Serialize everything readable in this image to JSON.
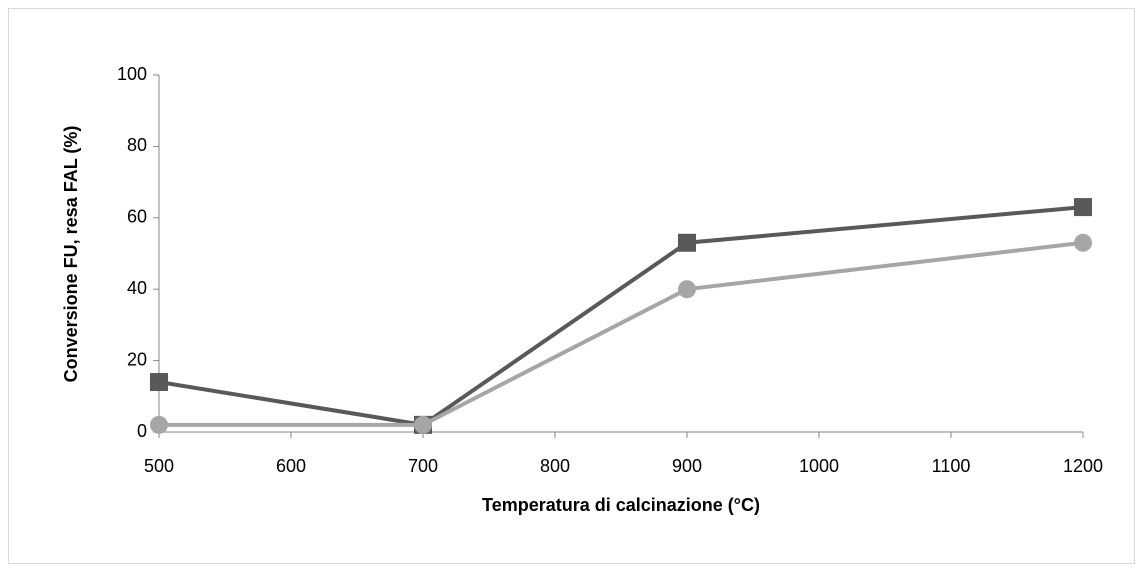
{
  "chart_data": {
    "type": "line",
    "xlabel": "Temperatura di calcinazione  (°C)",
    "ylabel": "Conversione FU, resa FAL (%)",
    "x": [
      500,
      700,
      900,
      1200
    ],
    "series": [
      {
        "color": "#595959",
        "marker": "square",
        "values": [
          14,
          2,
          53,
          63
        ]
      },
      {
        "color": "#a6a6a6",
        "marker": "circle",
        "values": [
          2,
          2,
          40,
          53
        ]
      }
    ],
    "xlim": [
      500,
      1200
    ],
    "xticks": [
      500,
      600,
      700,
      800,
      900,
      1000,
      1100,
      1200
    ],
    "ylim": [
      0,
      100
    ],
    "yticks": [
      0,
      20,
      40,
      60,
      80,
      100
    ],
    "grid": false
  }
}
